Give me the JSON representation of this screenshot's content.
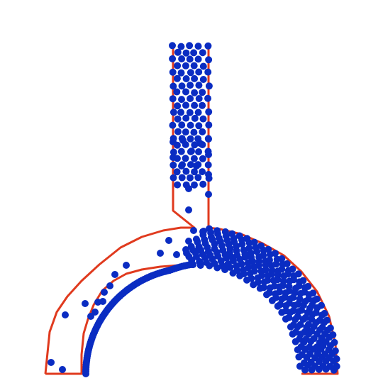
{
  "scene": {
    "type": "particle-simulation",
    "shape": "vertical channel joined to a semicircular arch",
    "colors": {
      "background": "#ffffff",
      "boundary": "#e03a1e",
      "particle": "#0a2cc2"
    },
    "channel_particle_rows": 22,
    "arch_particle_layers": 11,
    "inner_edge_particles": 75
  }
}
